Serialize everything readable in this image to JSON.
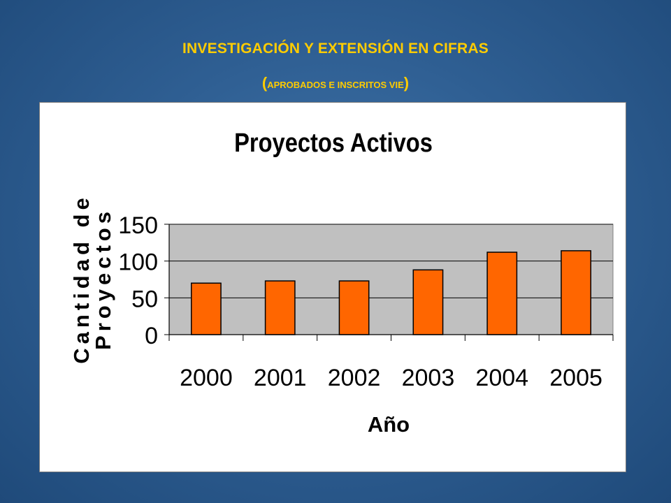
{
  "slide": {
    "title": "INVESTIGACIÓN Y EXTENSIÓN EN CIFRAS",
    "subtitle_open": "(",
    "subtitle_text": "APROBADOS E INSCRITOS VIE",
    "subtitle_close": ")"
  },
  "chart_data": {
    "type": "bar",
    "title": "Proyectos Activos",
    "xlabel": "Año",
    "ylabel_lines": [
      "Cantidad de",
      "Proyectos"
    ],
    "categories": [
      "2000",
      "2001",
      "2002",
      "2003",
      "2004",
      "2005"
    ],
    "values": [
      70,
      73,
      73,
      88,
      112,
      114
    ],
    "ylim": [
      0,
      150
    ],
    "yticks": [
      0,
      50,
      100,
      150
    ],
    "grid": true,
    "legend": "none",
    "colors": {
      "bar_fill": "#ff6600",
      "bar_stroke": "#000000",
      "plot_background": "#c0c0c0",
      "slide_title": "#ffcc00"
    }
  }
}
